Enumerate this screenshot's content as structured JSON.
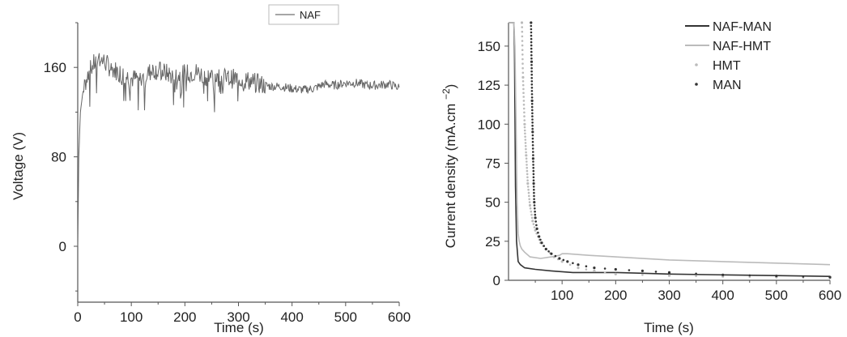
{
  "chart_data": [
    {
      "type": "line",
      "xlabel": "Time (s)",
      "ylabel": "Voltage (V)",
      "xlim": [
        0,
        600
      ],
      "ylim": [
        -50,
        200
      ],
      "xticks": [
        0,
        100,
        200,
        300,
        400,
        500,
        600
      ],
      "yticks": [
        0,
        80,
        160
      ],
      "legend": {
        "placement": "top-center",
        "entries": [
          "NAF"
        ]
      },
      "series": [
        {
          "name": "NAF",
          "color": "#666666",
          "x": [
            0,
            2,
            5,
            10,
            20,
            30,
            40,
            50,
            60,
            80,
            100,
            120,
            140,
            160,
            180,
            200,
            220,
            240,
            260,
            280,
            300,
            320,
            340,
            360,
            380,
            400,
            420,
            440,
            460,
            480,
            500,
            520,
            540,
            560,
            580,
            600
          ],
          "y": [
            0,
            80,
            120,
            140,
            155,
            163,
            168,
            165,
            160,
            155,
            150,
            150,
            158,
            156,
            152,
            154,
            156,
            152,
            152,
            150,
            150,
            148,
            145,
            143,
            143,
            141,
            140,
            141,
            145,
            144,
            146,
            146,
            144,
            144,
            145,
            142
          ]
        }
      ]
    },
    {
      "type": "line",
      "xlabel": "Time (s)",
      "ylabel": "Current density (mA.cm−2)",
      "xlim": [
        0,
        600
      ],
      "ylim": [
        0,
        165
      ],
      "xticks": [
        100,
        200,
        300,
        400,
        500,
        600
      ],
      "yticks": [
        0,
        25,
        50,
        75,
        100,
        125,
        150
      ],
      "legend": {
        "placement": "top-right",
        "entries": [
          "NAF-MAN",
          "NAF-HMT",
          "HMT",
          "MAN"
        ]
      },
      "series": [
        {
          "name": "NAF-MAN",
          "color": "#333333",
          "style": "line",
          "x": [
            0,
            10,
            11,
            12,
            13,
            15,
            18,
            22,
            30,
            50,
            80,
            120,
            160,
            200,
            250,
            300,
            400,
            500,
            600
          ],
          "y": [
            165,
            165,
            150,
            110,
            60,
            25,
            12,
            10,
            8,
            7,
            6,
            5,
            5,
            5,
            4.5,
            4,
            3.5,
            3,
            2.5
          ]
        },
        {
          "name": "NAF-HMT",
          "color": "#bbbbbb",
          "style": "line",
          "x": [
            0,
            10,
            12,
            14,
            16,
            18,
            20,
            22,
            25,
            30,
            40,
            60,
            80,
            95,
            100,
            110,
            150,
            200,
            300,
            400,
            500,
            600
          ],
          "y": [
            165,
            165,
            150,
            100,
            50,
            30,
            25,
            22,
            20,
            18,
            15,
            14,
            15,
            16,
            17,
            17,
            16,
            15,
            13,
            12,
            11,
            10
          ]
        },
        {
          "name": "HMT",
          "color": "#bbbbbb",
          "style": "dots",
          "x": [
            25,
            27,
            30,
            33,
            36,
            40,
            45,
            50,
            60,
            70,
            85,
            100,
            130,
            160,
            200,
            300,
            400,
            500,
            600
          ],
          "y": [
            165,
            130,
            100,
            80,
            62,
            48,
            38,
            32,
            24,
            20,
            15,
            12,
            8,
            6,
            4,
            3,
            2.5,
            2,
            1.5
          ]
        },
        {
          "name": "MAN",
          "color": "#333333",
          "style": "dots",
          "x": [
            42,
            43,
            44,
            45,
            46,
            47,
            48,
            50,
            53,
            57,
            62,
            70,
            80,
            95,
            110,
            130,
            160,
            200,
            250,
            300,
            400,
            500,
            600
          ],
          "y": [
            165,
            140,
            115,
            95,
            78,
            62,
            50,
            40,
            33,
            28,
            24,
            20,
            17,
            14,
            12,
            10,
            8,
            7,
            6,
            5,
            3.5,
            2.8,
            2
          ]
        }
      ]
    }
  ]
}
